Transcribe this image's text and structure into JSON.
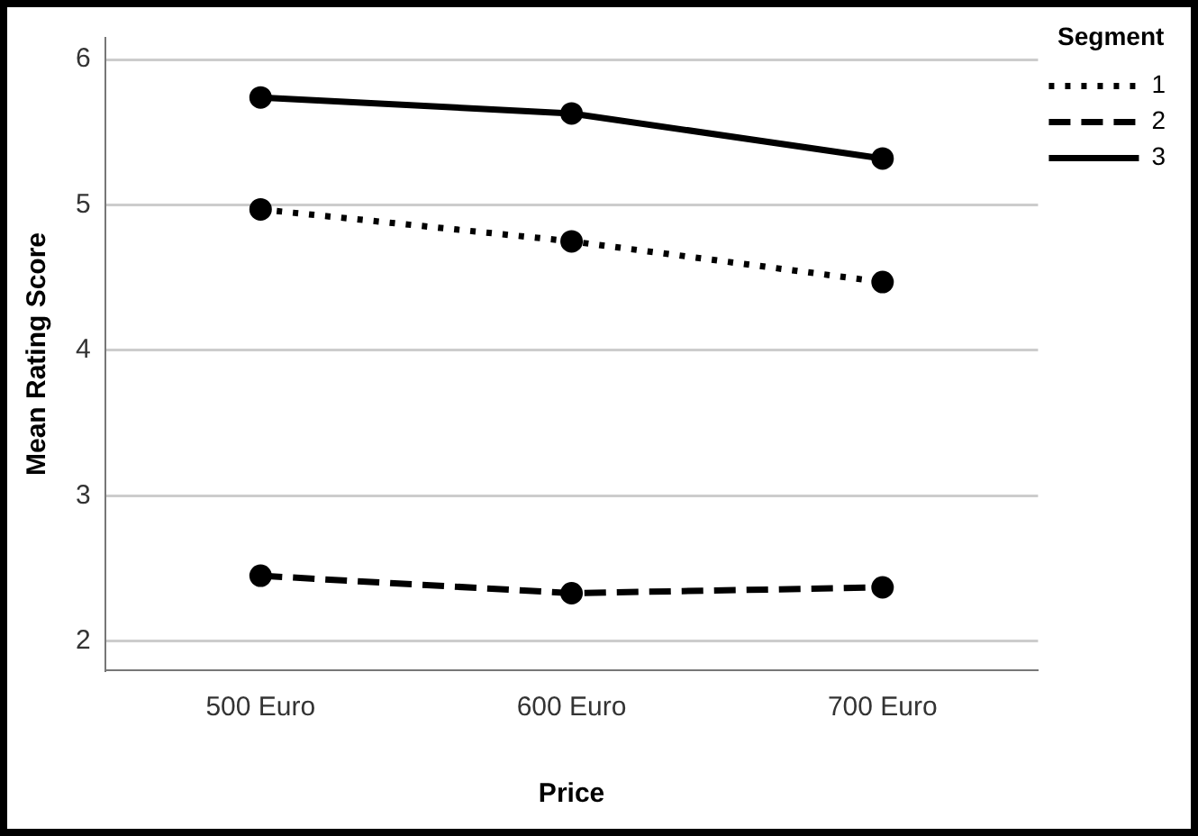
{
  "chart_data": {
    "type": "line",
    "xlabel": "Price",
    "ylabel": "Mean Rating Score",
    "legend_title": "Segment",
    "legend": "top right",
    "grid": "y",
    "marker": "circle",
    "categories": [
      "500 Euro",
      "600 Euro",
      "700 Euro"
    ],
    "ylim": [
      1.8,
      6.15
    ],
    "yticks": [
      2,
      3,
      4,
      5,
      6
    ],
    "series": [
      {
        "name": "1",
        "color": "#000000",
        "line_style": "dotted",
        "values": [
          4.97,
          4.75,
          4.47
        ]
      },
      {
        "name": "2",
        "color": "#000000",
        "line_style": "dashed",
        "values": [
          2.45,
          2.33,
          2.37
        ]
      },
      {
        "name": "3",
        "color": "#000000",
        "line_style": "solid",
        "values": [
          5.74,
          5.63,
          5.32
        ]
      }
    ]
  }
}
